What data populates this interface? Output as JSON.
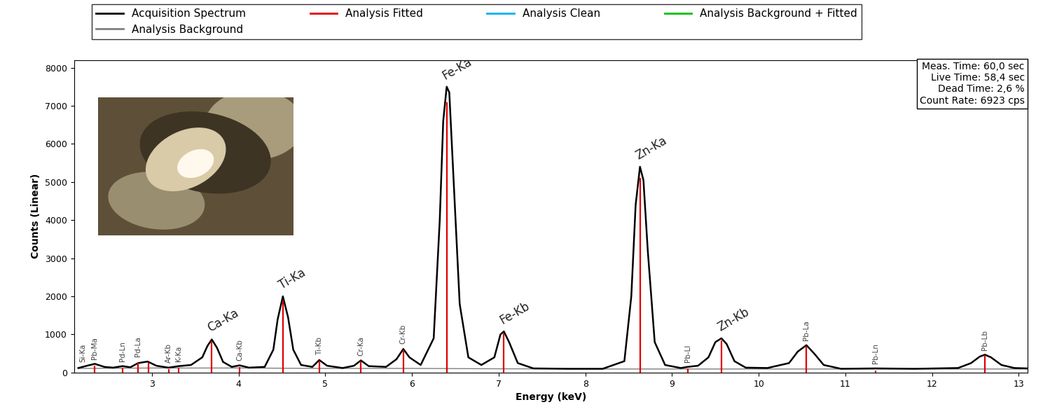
{
  "chart_data": {
    "type": "line",
    "xlabel": "Energy (keV)",
    "ylabel": "Counts (Linear)",
    "xlim": [
      2.1,
      13.1
    ],
    "ylim": [
      0,
      8200
    ],
    "xticks": [
      3,
      4,
      5,
      6,
      7,
      8,
      9,
      10,
      11,
      12,
      13
    ],
    "yticks": [
      0,
      1000,
      2000,
      3000,
      4000,
      5000,
      6000,
      7000,
      8000
    ],
    "grid": false,
    "legend": "upper left",
    "series": [
      {
        "name": "Acquisition Spectrum",
        "color": "#000000",
        "type": "line",
        "x": [
          2.15,
          2.25,
          2.34,
          2.45,
          2.55,
          2.66,
          2.75,
          2.84,
          2.95,
          3.05,
          3.19,
          3.31,
          3.45,
          3.58,
          3.64,
          3.69,
          3.75,
          3.82,
          3.92,
          4.01,
          4.12,
          4.3,
          4.4,
          4.45,
          4.51,
          4.57,
          4.63,
          4.72,
          4.85,
          4.93,
          5.02,
          5.2,
          5.33,
          5.41,
          5.5,
          5.7,
          5.82,
          5.9,
          5.97,
          6.1,
          6.25,
          6.32,
          6.36,
          6.4,
          6.43,
          6.47,
          6.55,
          6.65,
          6.8,
          6.95,
          7.02,
          7.06,
          7.12,
          7.22,
          7.4,
          7.8,
          8.2,
          8.45,
          8.53,
          8.58,
          8.63,
          8.67,
          8.72,
          8.8,
          8.92,
          9.1,
          9.18,
          9.3,
          9.42,
          9.5,
          9.57,
          9.63,
          9.72,
          9.85,
          10.1,
          10.35,
          10.45,
          10.55,
          10.64,
          10.75,
          10.95,
          11.35,
          11.8,
          12.3,
          12.45,
          12.55,
          12.61,
          12.68,
          12.8,
          12.95,
          13.1
        ],
        "values": [
          120,
          180,
          230,
          150,
          130,
          170,
          140,
          250,
          290,
          180,
          130,
          170,
          200,
          400,
          700,
          870,
          650,
          280,
          150,
          190,
          130,
          150,
          600,
          1400,
          2000,
          1450,
          600,
          200,
          150,
          330,
          180,
          120,
          180,
          320,
          170,
          150,
          350,
          620,
          400,
          200,
          900,
          4000,
          6600,
          7500,
          7350,
          5500,
          1800,
          400,
          200,
          400,
          1000,
          1080,
          800,
          250,
          110,
          100,
          100,
          300,
          2000,
          4400,
          5400,
          5050,
          3200,
          800,
          200,
          120,
          150,
          180,
          400,
          800,
          900,
          750,
          300,
          130,
          120,
          250,
          550,
          720,
          500,
          200,
          100,
          110,
          100,
          120,
          250,
          420,
          470,
          400,
          200,
          120,
          110
        ]
      },
      {
        "name": "Analysis Background",
        "color": "#808080",
        "type": "line",
        "x": [
          2.15,
          3.0,
          4.0,
          5.0,
          6.0,
          7.0,
          8.0,
          9.0,
          10.0,
          11.0,
          12.0,
          13.1
        ],
        "values": [
          110,
          120,
          120,
          110,
          110,
          100,
          95,
          95,
          95,
          95,
          95,
          95
        ]
      },
      {
        "name": "Analysis Fitted",
        "color": "#e00000",
        "type": "stem",
        "x": [
          2.34,
          2.66,
          2.84,
          2.96,
          3.19,
          3.31,
          3.69,
          4.01,
          4.51,
          4.93,
          5.41,
          5.9,
          6.4,
          7.06,
          8.63,
          9.18,
          9.57,
          10.55,
          11.35,
          12.61
        ],
        "values": [
          180,
          120,
          250,
          260,
          90,
          130,
          820,
          150,
          1900,
          310,
          300,
          590,
          7100,
          1020,
          5100,
          100,
          850,
          690,
          60,
          450
        ]
      },
      {
        "name": "Analysis Clean",
        "color": "#00b0f0",
        "type": "line",
        "x": [],
        "values": []
      },
      {
        "name": "Analysis Background + Fitted",
        "color": "#00c000",
        "type": "line",
        "x": [],
        "values": []
      }
    ],
    "annotations": [
      {
        "text": "Si-Ka",
        "x": 2.2,
        "y": 150
      },
      {
        "text": "Pb-Ma",
        "x": 2.34,
        "y": 230
      },
      {
        "text": "Pd-Ln",
        "x": 2.66,
        "y": 170
      },
      {
        "text": "Pd-La",
        "x": 2.84,
        "y": 290
      },
      {
        "text": "Ar-Kb",
        "x": 3.19,
        "y": 130
      },
      {
        "text": "K-Ka",
        "x": 3.31,
        "y": 170
      },
      {
        "text": "Ca-Ka",
        "x": 3.69,
        "y": 870
      },
      {
        "text": "Ca-Kb",
        "x": 4.01,
        "y": 190
      },
      {
        "text": "Ti-Ka",
        "x": 4.51,
        "y": 2000
      },
      {
        "text": "Ti-Kb",
        "x": 4.93,
        "y": 330
      },
      {
        "text": "Cr-Ka",
        "x": 5.41,
        "y": 320
      },
      {
        "text": "Cr-Kb",
        "x": 5.9,
        "y": 620
      },
      {
        "text": "Fe-Ka",
        "x": 6.4,
        "y": 7500
      },
      {
        "text": "Fe-Kb",
        "x": 7.06,
        "y": 1080
      },
      {
        "text": "Zn-Ka",
        "x": 8.63,
        "y": 5400
      },
      {
        "text": "Pb-Ll",
        "x": 9.18,
        "y": 150
      },
      {
        "text": "Zn-Kb",
        "x": 9.57,
        "y": 900
      },
      {
        "text": "Pb-La",
        "x": 10.55,
        "y": 720
      },
      {
        "text": "Pb-Ln",
        "x": 11.35,
        "y": 110
      },
      {
        "text": "Pb-Lb",
        "x": 12.61,
        "y": 470
      }
    ],
    "info_box": [
      "Meas. Time: 60,0 sec",
      "Live Time: 58,4 sec",
      "Dead Time: 2,6 %",
      "Count Rate: 6923 cps"
    ]
  }
}
